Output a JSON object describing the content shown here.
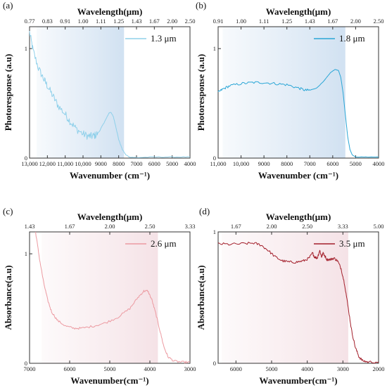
{
  "chart_data": [
    {
      "panel": "(a)",
      "type": "line",
      "xlabel": "Wavenumber (cm⁻¹)",
      "x2label": "Wavelength(μm)",
      "ylabel": "Photoresponse (a.u)",
      "xlim": [
        13000,
        4000
      ],
      "ylim": [
        0,
        1.2
      ],
      "xticks": [
        {
          "value": 13000,
          "label": "13,000"
        },
        {
          "value": 12000,
          "label": "12,000"
        },
        {
          "value": 11000,
          "label": "11,000"
        },
        {
          "value": 10000,
          "label": "10,000"
        },
        {
          "value": 9000,
          "label": "9000"
        },
        {
          "value": 8000,
          "label": "8000"
        },
        {
          "value": 7000,
          "label": "7000"
        },
        {
          "value": 6000,
          "label": "6000"
        },
        {
          "value": 5000,
          "label": "5000"
        },
        {
          "value": 4000,
          "label": "4000"
        }
      ],
      "yticks": [
        {
          "value": 0,
          "label": "0"
        },
        {
          "value": 1,
          "label": "1"
        }
      ],
      "top_ticks": [
        {
          "pos": 13000,
          "label": "0.77"
        },
        {
          "pos": 12000,
          "label": "0.83"
        },
        {
          "pos": 11000,
          "label": "0.91"
        },
        {
          "pos": 10000,
          "label": "1.00"
        },
        {
          "pos": 9000,
          "label": "1.11"
        },
        {
          "pos": 8000,
          "label": "1.25"
        },
        {
          "pos": 7000,
          "label": "1.43"
        },
        {
          "pos": 6000,
          "label": "1.67"
        },
        {
          "pos": 5000,
          "label": "2.00"
        },
        {
          "pos": 4000,
          "label": "2.50"
        }
      ],
      "shade": {
        "from": 12600,
        "to": 7700,
        "color": "#c9dcef"
      },
      "series": [
        {
          "name": "1.3 μm",
          "color": "#8fd0ea",
          "noise": 0.035,
          "noise_until": 9200,
          "points": [
            [
              13000,
              1.15
            ],
            [
              12800,
              0.98
            ],
            [
              12500,
              0.82
            ],
            [
              12200,
              0.72
            ],
            [
              12000,
              0.66
            ],
            [
              11700,
              0.57
            ],
            [
              11400,
              0.48
            ],
            [
              11000,
              0.4
            ],
            [
              10700,
              0.33
            ],
            [
              10400,
              0.27
            ],
            [
              10000,
              0.22
            ],
            [
              9700,
              0.2
            ],
            [
              9500,
              0.2
            ],
            [
              9300,
              0.21
            ],
            [
              9100,
              0.24
            ],
            [
              8900,
              0.3
            ],
            [
              8700,
              0.36
            ],
            [
              8550,
              0.41
            ],
            [
              8450,
              0.42
            ],
            [
              8300,
              0.38
            ],
            [
              8150,
              0.28
            ],
            [
              8000,
              0.17
            ],
            [
              7800,
              0.08
            ],
            [
              7600,
              0.03
            ],
            [
              7400,
              0.01
            ],
            [
              7000,
              0.005
            ],
            [
              6000,
              0.01
            ],
            [
              5000,
              0.01
            ],
            [
              4000,
              0.01
            ]
          ]
        }
      ]
    },
    {
      "panel": "(b)",
      "type": "line",
      "xlabel": "Wavenumber (cm⁻¹)",
      "x2label": "Wavelength(μm)",
      "ylabel": "Photoresponse (a.u)",
      "xlim": [
        11000,
        4000
      ],
      "ylim": [
        0,
        1.2
      ],
      "xticks": [
        {
          "value": 11000,
          "label": "11,000"
        },
        {
          "value": 10000,
          "label": "10,000"
        },
        {
          "value": 9000,
          "label": "9000"
        },
        {
          "value": 8000,
          "label": "8000"
        },
        {
          "value": 7000,
          "label": "7000"
        },
        {
          "value": 6000,
          "label": "6000"
        },
        {
          "value": 5000,
          "label": "5000"
        },
        {
          "value": 4000,
          "label": "4000"
        }
      ],
      "yticks": [
        {
          "value": 0,
          "label": "0"
        },
        {
          "value": 1,
          "label": "1"
        }
      ],
      "top_ticks": [
        {
          "pos": 11000,
          "label": "0.91"
        },
        {
          "pos": 10000,
          "label": "1.00"
        },
        {
          "pos": 9000,
          "label": "1.11"
        },
        {
          "pos": 8000,
          "label": "1.25"
        },
        {
          "pos": 7000,
          "label": "1.43"
        },
        {
          "pos": 6000,
          "label": "1.67"
        },
        {
          "pos": 5000,
          "label": "2.00"
        },
        {
          "pos": 4000,
          "label": "2.50"
        }
      ],
      "shade": {
        "from": 10800,
        "to": 5450,
        "color": "#c9dcef"
      },
      "series": [
        {
          "name": "1.8 μm",
          "color": "#2aa6d6",
          "noise": 0.012,
          "noise_until": 7000,
          "points": [
            [
              11000,
              0.6
            ],
            [
              10800,
              0.63
            ],
            [
              10500,
              0.66
            ],
            [
              10000,
              0.68
            ],
            [
              9500,
              0.69
            ],
            [
              9000,
              0.69
            ],
            [
              8500,
              0.68
            ],
            [
              8000,
              0.67
            ],
            [
              7500,
              0.64
            ],
            [
              7200,
              0.62
            ],
            [
              7000,
              0.62
            ],
            [
              6700,
              0.64
            ],
            [
              6400,
              0.7
            ],
            [
              6100,
              0.78
            ],
            [
              5900,
              0.81
            ],
            [
              5750,
              0.8
            ],
            [
              5650,
              0.74
            ],
            [
              5550,
              0.6
            ],
            [
              5450,
              0.4
            ],
            [
              5350,
              0.2
            ],
            [
              5250,
              0.08
            ],
            [
              5150,
              0.03
            ],
            [
              5000,
              0.01
            ],
            [
              4500,
              0.01
            ],
            [
              4000,
              0.01
            ]
          ]
        }
      ]
    },
    {
      "panel": "(c)",
      "type": "line",
      "xlabel": "Wavenumber(cm⁻¹)",
      "x2label": "Wavelength(μm)",
      "ylabel": "Absorbance(a.u)",
      "xlim": [
        7000,
        3000
      ],
      "ylim": [
        0,
        1.2
      ],
      "xticks": [
        {
          "value": 7000,
          "label": "7000"
        },
        {
          "value": 6000,
          "label": "6000"
        },
        {
          "value": 5000,
          "label": "5000"
        },
        {
          "value": 4000,
          "label": "4000"
        },
        {
          "value": 3000,
          "label": "3000"
        }
      ],
      "yticks": [
        {
          "value": 0,
          "label": "0"
        },
        {
          "value": 1,
          "label": "1"
        }
      ],
      "top_ticks": [
        {
          "pos": 7000,
          "label": "1.43"
        },
        {
          "pos": 6000,
          "label": "1.67"
        },
        {
          "pos": 5000,
          "label": "2.00"
        },
        {
          "pos": 4000,
          "label": "2.50"
        },
        {
          "pos": 3000,
          "label": "3.33"
        }
      ],
      "shade": {
        "from": 6700,
        "to": 3800,
        "color": "#f3dde2"
      },
      "series": [
        {
          "name": "2.6 μm",
          "color": "#ec9aa1",
          "noise": 0.01,
          "noise_until": 3000,
          "points": [
            [
              6850,
              1.2
            ],
            [
              6750,
              0.95
            ],
            [
              6650,
              0.74
            ],
            [
              6550,
              0.58
            ],
            [
              6450,
              0.47
            ],
            [
              6300,
              0.39
            ],
            [
              6100,
              0.34
            ],
            [
              5900,
              0.32
            ],
            [
              5700,
              0.32
            ],
            [
              5400,
              0.34
            ],
            [
              5100,
              0.37
            ],
            [
              4800,
              0.42
            ],
            [
              4500,
              0.5
            ],
            [
              4300,
              0.6
            ],
            [
              4150,
              0.66
            ],
            [
              4050,
              0.66
            ],
            [
              3950,
              0.58
            ],
            [
              3850,
              0.45
            ],
            [
              3750,
              0.3
            ],
            [
              3650,
              0.15
            ],
            [
              3550,
              0.06
            ],
            [
              3400,
              0.02
            ],
            [
              3200,
              0.01
            ],
            [
              3000,
              0.01
            ]
          ]
        }
      ]
    },
    {
      "panel": "(d)",
      "type": "line",
      "xlabel": "Wavenumber(cm⁻¹)",
      "x2label": "Wavelength(μm)",
      "ylabel": "Absorbance(a.u)",
      "xlim": [
        6500,
        2000
      ],
      "ylim": [
        0,
        1.0
      ],
      "xticks": [
        {
          "value": 6000,
          "label": "6000"
        },
        {
          "value": 5000,
          "label": "5000"
        },
        {
          "value": 4000,
          "label": "4000"
        },
        {
          "value": 3000,
          "label": "3000"
        },
        {
          "value": 2000,
          "label": "2000"
        }
      ],
      "yticks": [
        {
          "value": 0,
          "label": "0"
        },
        {
          "value": 1,
          "label": "1"
        }
      ],
      "top_ticks": [
        {
          "pos": 6000,
          "label": "1.67"
        },
        {
          "pos": 5000,
          "label": "2.00"
        },
        {
          "pos": 4000,
          "label": "2.50"
        },
        {
          "pos": 3000,
          "label": "3.33"
        },
        {
          "pos": 2000,
          "label": "5.00"
        }
      ],
      "shade": {
        "from": 6400,
        "to": 2850,
        "color": "#f3dde2"
      },
      "series": [
        {
          "name": "3.5 μm",
          "color": "#a31f2b",
          "noise": 0.01,
          "noise_until": 2000,
          "points": [
            [
              6500,
              0.91
            ],
            [
              6200,
              0.905
            ],
            [
              5800,
              0.91
            ],
            [
              5500,
              0.915
            ],
            [
              5300,
              0.9
            ],
            [
              5100,
              0.86
            ],
            [
              4900,
              0.81
            ],
            [
              4700,
              0.78
            ],
            [
              4500,
              0.77
            ],
            [
              4300,
              0.77
            ],
            [
              4100,
              0.78
            ],
            [
              3950,
              0.8
            ],
            [
              3850,
              0.84
            ],
            [
              3800,
              0.81
            ],
            [
              3720,
              0.8
            ],
            [
              3650,
              0.86
            ],
            [
              3600,
              0.81
            ],
            [
              3550,
              0.84
            ],
            [
              3450,
              0.79
            ],
            [
              3350,
              0.79
            ],
            [
              3250,
              0.8
            ],
            [
              3150,
              0.78
            ],
            [
              3050,
              0.72
            ],
            [
              2950,
              0.6
            ],
            [
              2850,
              0.42
            ],
            [
              2750,
              0.24
            ],
            [
              2650,
              0.12
            ],
            [
              2550,
              0.05
            ],
            [
              2450,
              0.02
            ],
            [
              2300,
              0.01
            ],
            [
              2000,
              0.01
            ]
          ]
        }
      ]
    }
  ]
}
